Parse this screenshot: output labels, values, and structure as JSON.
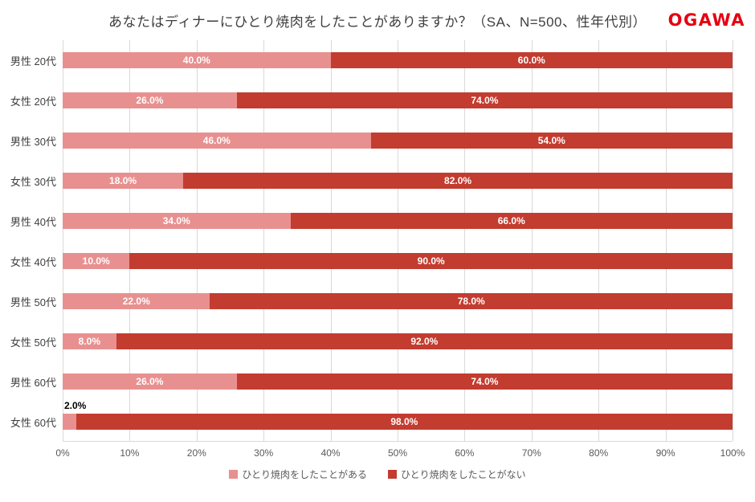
{
  "logo": {
    "text": "OGAWA",
    "color": "#e60012"
  },
  "chart_data": {
    "type": "bar",
    "orientation": "horizontal",
    "stacked": true,
    "title": "あなたはディナーにひとり焼肉をしたことがありますか？（SA、N=500、性年代別）",
    "categories": [
      "男性 20代",
      "女性 20代",
      "男性 30代",
      "女性 30代",
      "男性 40代",
      "女性 40代",
      "男性 50代",
      "女性 50代",
      "男性 60代",
      "女性 60代"
    ],
    "series": [
      {
        "name": "ひとり焼肉をしたことがある",
        "color": "#e89090",
        "values": [
          40.0,
          26.0,
          46.0,
          18.0,
          34.0,
          10.0,
          22.0,
          8.0,
          26.0,
          2.0
        ]
      },
      {
        "name": "ひとり焼肉をしたことがない",
        "color": "#c33c30",
        "values": [
          60.0,
          74.0,
          54.0,
          82.0,
          66.0,
          90.0,
          78.0,
          92.0,
          74.0,
          98.0
        ]
      }
    ],
    "xlim": [
      0,
      100
    ],
    "x_ticks": [
      "0%",
      "10%",
      "20%",
      "30%",
      "40%",
      "50%",
      "60%",
      "70%",
      "80%",
      "90%",
      "100%"
    ],
    "grid": true,
    "gridline_color": "#d9d9d9",
    "legend_position": "bottom",
    "value_suffix": "%"
  }
}
